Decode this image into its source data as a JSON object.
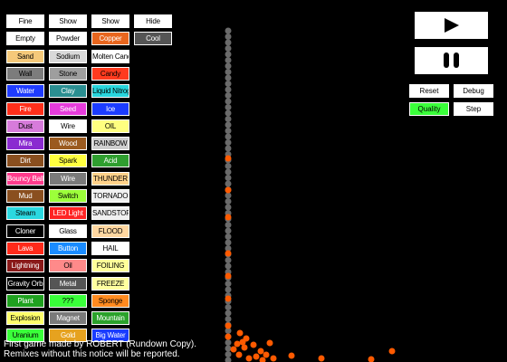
{
  "colors": {
    "background": "#000000",
    "particle_orange": "#ff5a00",
    "wall_gray": "#6a6a6a"
  },
  "element_buttons": [
    [
      "Fine",
      "#ffffff",
      "#000000"
    ],
    [
      "Show",
      "#ffffff",
      "#000000"
    ],
    [
      "Show",
      "#ffffff",
      "#000000"
    ],
    [
      "Hide",
      "#ffffff",
      "#000000"
    ],
    [
      "Empty",
      "#ffffff",
      "#000000"
    ],
    [
      "Powder",
      "#ffffff",
      "#000000"
    ],
    [
      "Copper",
      "#e8661e",
      "#ffffff"
    ],
    [
      "Cool",
      "#555555",
      "#ffffff"
    ],
    [
      "Sand",
      "#f5c97a",
      "#000000"
    ],
    [
      "Sodium",
      "#d9d9d9",
      "#000000"
    ],
    [
      "Molten Candy",
      "#ffffff",
      "#000000"
    ],
    [
      "Wall",
      "#7c7c7c",
      "#000000"
    ],
    [
      "Stone",
      "#9e9e9e",
      "#000000"
    ],
    [
      "Candy",
      "#ff3b1f",
      "#000000"
    ],
    [
      "Water",
      "#1f3cff",
      "#ffffff"
    ],
    [
      "Clay",
      "#2a8e91",
      "#ffffff"
    ],
    [
      "Liquid Nitrogen",
      "#27d5dd",
      "#000000"
    ],
    [
      "Fire",
      "#ff2f1a",
      "#ffffff"
    ],
    [
      "Seed",
      "#e63cdc",
      "#ffffff"
    ],
    [
      "Ice",
      "#1c3cff",
      "#ffffff"
    ],
    [
      "Dust",
      "#d77bdb",
      "#000000"
    ],
    [
      "Wire",
      "#ffffff",
      "#000000"
    ],
    [
      "OIL",
      "#ffff80",
      "#000000"
    ],
    [
      "Mira",
      "#8a2bd0",
      "#ffffff"
    ],
    [
      "Wood",
      "#9b5a1f",
      "#ffffff"
    ],
    [
      "RAINBOW",
      "#cfcfcf",
      "#000000"
    ],
    [
      "Dirt",
      "#8a4f1f",
      "#ffffff"
    ],
    [
      "Spark",
      "#ffff40",
      "#000000"
    ],
    [
      "Acid",
      "#2f9e2f",
      "#ffffff"
    ],
    [
      "Bouncy Ball",
      "#ff3b8c",
      "#ffffff"
    ],
    [
      "Wire",
      "#7a7a7a",
      "#ffffff"
    ],
    [
      "THUNDER",
      "#ffd28a",
      "#000000"
    ],
    [
      "Mud",
      "#8a4f1f",
      "#ffffff"
    ],
    [
      "Switch",
      "#9cff3a",
      "#000000"
    ],
    [
      "TORNADO",
      "#f0f0f0",
      "#000000"
    ],
    [
      "Steam",
      "#2bd8e0",
      "#000000"
    ],
    [
      "LED Light",
      "#ff2424",
      "#ffffff"
    ],
    [
      "SANDSTORM",
      "#f0f0f0",
      "#000000"
    ],
    [
      "Cloner",
      "#000000",
      "#ffffff"
    ],
    [
      "Glass",
      "#ffffff",
      "#000000"
    ],
    [
      "FLOOD",
      "#ffd7a0",
      "#000000"
    ],
    [
      "Lava",
      "#ff2a1a",
      "#ffffff"
    ],
    [
      "Button",
      "#1a8cff",
      "#ffffff"
    ],
    [
      "HAIL",
      "#ffffff",
      "#000000"
    ],
    [
      "Lightning",
      "#8a1a1a",
      "#ffffff"
    ],
    [
      "Oil",
      "#ff8a8a",
      "#000000"
    ],
    [
      "FOILING",
      "#ffff9a",
      "#000000"
    ],
    [
      "Gravity Orb",
      "#000000",
      "#ffffff"
    ],
    [
      "Metal",
      "#555555",
      "#ffffff"
    ],
    [
      "FREEZE",
      "#ffffa0",
      "#000000"
    ],
    [
      "Plant",
      "#1fa11f",
      "#ffffff"
    ],
    [
      "???",
      "#3aff3a",
      "#000000"
    ],
    [
      "Sponge",
      "#ff8a1f",
      "#000000"
    ],
    [
      "Explosion",
      "#ffff6a",
      "#000000"
    ],
    [
      "Magnet",
      "#7a7a7a",
      "#ffffff"
    ],
    [
      "Mountain",
      "#2aa12a",
      "#ffffff"
    ],
    [
      "Uranium",
      "#3aff3a",
      "#000000"
    ],
    [
      "Gold",
      "#e6a21f",
      "#ffffff"
    ],
    [
      "Big Water",
      "#1a3cff",
      "#ffffff"
    ]
  ],
  "top_labels": {
    "play": "▶",
    "pause": "❚❚"
  },
  "right_buttons": {
    "reset": "Reset",
    "debug": "Debug",
    "quality": "Quality",
    "step": "Step"
  },
  "credits": {
    "line1": "First game made by ROBERT (Rundown Copy).",
    "line2": "Remixes without this notice will be reported."
  }
}
